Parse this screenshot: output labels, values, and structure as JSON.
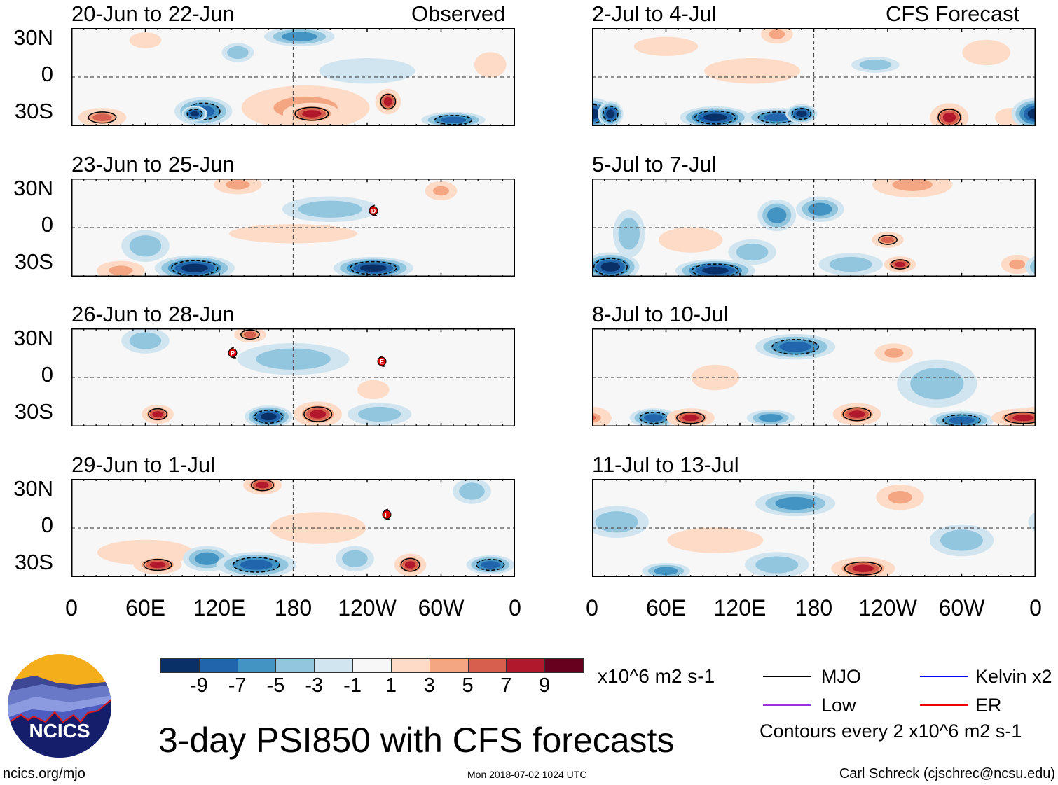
{
  "header": {
    "observed_label": "Observed",
    "forecast_label": "CFS Forecast"
  },
  "lat_labels": [
    "30N",
    "0",
    "30S"
  ],
  "lon_labels": [
    "0",
    "60E",
    "120E",
    "180",
    "120W",
    "60W",
    "0"
  ],
  "colorbar": {
    "colors": [
      "#0a3068",
      "#2166ac",
      "#4393c3",
      "#92c5de",
      "#d1e5f0",
      "#f7f7f7",
      "#fddbc7",
      "#f4a582",
      "#d6604d",
      "#b2182b",
      "#67001f"
    ],
    "labels": [
      "-9",
      "-7",
      "-5",
      "-3",
      "-1",
      "1",
      "3",
      "5",
      "7",
      "9"
    ],
    "units": "x10^6 m2 s-1"
  },
  "legend": {
    "items": [
      {
        "label": "MJO",
        "color": "#000000"
      },
      {
        "label": "Kelvin x2",
        "color": "#0000ff"
      },
      {
        "label": "Low",
        "color": "#9933dd"
      },
      {
        "label": "ER",
        "color": "#ee0000"
      }
    ],
    "contour_note": "Contours every 2 x10^6 m2 s-1"
  },
  "title": "3-day PSI850 with CFS forecasts",
  "footer": {
    "left": "ncics.org/mjo",
    "center": "Mon 2018-07-02 1024 UTC",
    "right": "Carl Schreck (cjschrec@ncsu.edu)"
  },
  "logo": {
    "text": "NCICS"
  },
  "chart_data": {
    "type": "heatmap",
    "variable": "3-day PSI850 anomaly",
    "units": "x10^6 m2 s-1",
    "levels": [
      -9,
      -7,
      -5,
      -3,
      -1,
      1,
      3,
      5,
      7,
      9
    ],
    "xlim": [
      0,
      360
    ],
    "ylim": [
      -40,
      40
    ],
    "panels": [
      {
        "title": "20-Jun to 22-Jun",
        "kind": "observed",
        "features": [
          [
            190,
            -25,
            40,
            14,
            5
          ],
          [
            195,
            -30,
            18,
            7,
            9
          ],
          [
            107,
            -28,
            18,
            9,
            -7
          ],
          [
            100,
            -30,
            8,
            5,
            -9
          ],
          [
            25,
            -33,
            15,
            6,
            7
          ],
          [
            257,
            -20,
            8,
            8,
            9
          ],
          [
            185,
            33,
            22,
            6,
            -5
          ],
          [
            310,
            -35,
            20,
            5,
            -7
          ],
          [
            135,
            20,
            10,
            6,
            -3
          ],
          [
            60,
            30,
            10,
            5,
            3
          ],
          [
            240,
            5,
            30,
            8,
            -1
          ],
          [
            340,
            10,
            10,
            8,
            3
          ]
        ],
        "storms": []
      },
      {
        "title": "23-Jun to 25-Jun",
        "kind": "observed",
        "features": [
          [
            100,
            -33,
            25,
            8,
            -9
          ],
          [
            245,
            -33,
            25,
            7,
            -9
          ],
          [
            40,
            -35,
            15,
            6,
            5
          ],
          [
            135,
            35,
            15,
            6,
            5
          ],
          [
            300,
            30,
            10,
            6,
            5
          ],
          [
            180,
            -5,
            40,
            6,
            3
          ],
          [
            60,
            -15,
            15,
            10,
            -3
          ],
          [
            210,
            15,
            30,
            8,
            -3
          ]
        ],
        "storms": [
          {
            "label": "D",
            "lon": 245,
            "lat": 14
          }
        ]
      },
      {
        "title": "26-Jun to 28-Jun",
        "kind": "observed",
        "features": [
          [
            70,
            -30,
            10,
            6,
            9
          ],
          [
            160,
            -32,
            15,
            7,
            -9
          ],
          [
            200,
            -30,
            15,
            8,
            9
          ],
          [
            145,
            35,
            10,
            5,
            7
          ],
          [
            250,
            -30,
            20,
            7,
            -3
          ],
          [
            60,
            30,
            15,
            8,
            -3
          ],
          [
            180,
            15,
            35,
            10,
            -3
          ],
          [
            245,
            -10,
            10,
            6,
            3
          ]
        ],
        "storms": [
          {
            "label": "P",
            "lon": 131,
            "lat": 20
          },
          {
            "label": "E",
            "lon": 252,
            "lat": 13
          }
        ]
      },
      {
        "title": "29-Jun to 1-Jul",
        "kind": "observed",
        "features": [
          [
            70,
            -30,
            15,
            6,
            9
          ],
          [
            150,
            -30,
            25,
            8,
            -7
          ],
          [
            155,
            35,
            12,
            6,
            9
          ],
          [
            275,
            -30,
            10,
            7,
            9
          ],
          [
            340,
            -30,
            15,
            6,
            -7
          ],
          [
            200,
            0,
            30,
            10,
            3
          ],
          [
            60,
            -20,
            30,
            8,
            3
          ],
          [
            110,
            -25,
            15,
            8,
            -5
          ],
          [
            325,
            30,
            12,
            8,
            -3
          ],
          [
            230,
            -25,
            12,
            8,
            -3
          ]
        ],
        "storms": [
          {
            "label": "F",
            "lon": 256,
            "lat": 11
          }
        ]
      },
      {
        "title": "2-Jul to 4-Jul",
        "kind": "forecast",
        "features": [
          [
            0,
            -30,
            15,
            10,
            -9
          ],
          [
            15,
            -30,
            8,
            8,
            -9
          ],
          [
            100,
            -33,
            22,
            7,
            -9
          ],
          [
            150,
            -33,
            20,
            6,
            -7
          ],
          [
            170,
            -30,
            10,
            6,
            -9
          ],
          [
            290,
            -33,
            12,
            9,
            9
          ],
          [
            340,
            -33,
            10,
            6,
            3
          ],
          [
            357,
            -30,
            10,
            9,
            -7
          ],
          [
            150,
            35,
            10,
            6,
            5
          ],
          [
            60,
            25,
            20,
            6,
            3
          ],
          [
            130,
            5,
            30,
            8,
            3
          ],
          [
            230,
            10,
            15,
            5,
            -3
          ],
          [
            320,
            20,
            15,
            8,
            3
          ]
        ],
        "storms": []
      },
      {
        "title": "5-Jul to 7-Jul",
        "kind": "forecast",
        "features": [
          [
            15,
            -32,
            18,
            9,
            -9
          ],
          [
            100,
            -35,
            25,
            7,
            -9
          ],
          [
            30,
            -5,
            10,
            15,
            -3
          ],
          [
            150,
            10,
            12,
            10,
            -5
          ],
          [
            185,
            15,
            15,
            8,
            -5
          ],
          [
            240,
            -10,
            10,
            5,
            7
          ],
          [
            250,
            -30,
            10,
            5,
            9
          ],
          [
            260,
            35,
            25,
            8,
            5
          ],
          [
            80,
            -10,
            20,
            8,
            3
          ],
          [
            345,
            -30,
            10,
            6,
            5
          ],
          [
            130,
            -20,
            15,
            8,
            -3
          ],
          [
            210,
            -30,
            20,
            7,
            -3
          ]
        ],
        "storms": []
      },
      {
        "title": "8-Jul to 10-Jul",
        "kind": "forecast",
        "features": [
          [
            0,
            -33,
            12,
            7,
            9
          ],
          [
            50,
            -33,
            15,
            6,
            -7
          ],
          [
            80,
            -33,
            15,
            6,
            9
          ],
          [
            145,
            -33,
            15,
            5,
            -5
          ],
          [
            215,
            -30,
            15,
            7,
            9
          ],
          [
            300,
            -35,
            20,
            6,
            -7
          ],
          [
            350,
            -33,
            20,
            6,
            9
          ],
          [
            165,
            25,
            25,
            8,
            -7
          ],
          [
            245,
            20,
            12,
            6,
            5
          ],
          [
            280,
            -5,
            25,
            15,
            -3
          ],
          [
            100,
            0,
            15,
            8,
            3
          ]
        ],
        "storms": []
      },
      {
        "title": "11-Jul to 13-Jul",
        "kind": "forecast",
        "features": [
          [
            165,
            20,
            25,
            8,
            -5
          ],
          [
            250,
            25,
            15,
            8,
            5
          ],
          [
            220,
            -33,
            20,
            7,
            9
          ],
          [
            60,
            -35,
            15,
            5,
            -5
          ],
          [
            150,
            -30,
            20,
            8,
            -3
          ],
          [
            100,
            -10,
            30,
            8,
            3
          ],
          [
            300,
            -10,
            20,
            10,
            -3
          ],
          [
            20,
            5,
            20,
            10,
            -3
          ]
        ],
        "storms": []
      }
    ]
  }
}
